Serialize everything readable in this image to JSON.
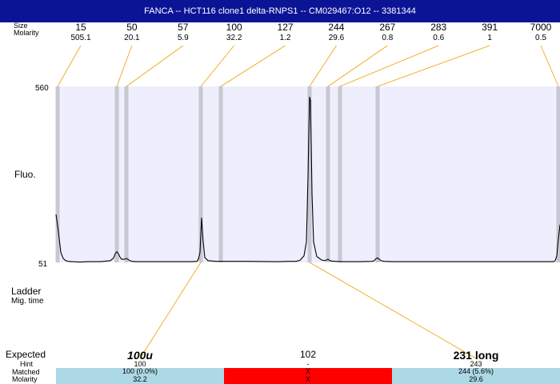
{
  "title": "FANCA -- HCT116 clone1 delta-RNPS1 -- CM029467:O12 -- 3381344",
  "row_labels": {
    "size": "Size",
    "molarity": "Molarity",
    "fluo": "Fluo.",
    "ladder": "Ladder",
    "mig_time": "Mig. time",
    "expected": "Expected",
    "hint": "Hint",
    "matched": "Matched",
    "molarity_bottom": "Molarity"
  },
  "colors": {
    "title_bg": "#0c1496",
    "plot_bg": "#eeeefc",
    "band": "#c8c8d4",
    "leader": "#f0a000",
    "matched_ok": "#add8e6",
    "matched_fail": "#ff0000"
  },
  "chart_data": {
    "type": "line",
    "title": "",
    "xlabel": "",
    "ylabel": "Fluo.",
    "ylim": [
      51,
      560
    ],
    "y_ticks": [
      "560",
      "51"
    ],
    "peaks": [
      {
        "size": "15",
        "molarity": "505.1"
      },
      {
        "size": "50",
        "molarity": "20.1"
      },
      {
        "size": "57",
        "molarity": "5.9"
      },
      {
        "size": "100",
        "molarity": "32.2"
      },
      {
        "size": "127",
        "molarity": "1.2"
      },
      {
        "size": "244",
        "molarity": "29.6"
      },
      {
        "size": "267",
        "molarity": "0.8"
      },
      {
        "size": "283",
        "molarity": "0.6"
      },
      {
        "size": "391",
        "molarity": "1"
      },
      {
        "size": "7000",
        "molarity": "0.5"
      }
    ],
    "trace": {
      "x": [
        0,
        3,
        6,
        9,
        12,
        15,
        20,
        30,
        40,
        55,
        68,
        72,
        74,
        76,
        78,
        80,
        82,
        85,
        88,
        90,
        92,
        95,
        100,
        110,
        130,
        155,
        170,
        176,
        178,
        180,
        181,
        182,
        184,
        186,
        190,
        200,
        240,
        270,
        280,
        290,
        300,
        305,
        310,
        313,
        314,
        315,
        316,
        317,
        318,
        319,
        320,
        322,
        326,
        332,
        336,
        338,
        340,
        342,
        344,
        350,
        355,
        380,
        395,
        398,
        400,
        402,
        404,
        406,
        410,
        420,
        500,
        560,
        600,
        622,
        624,
        626,
        628,
        630
      ],
      "y": [
        190,
        140,
        80,
        62,
        56,
        54,
        53,
        52,
        53,
        53,
        56,
        64,
        76,
        82,
        76,
        66,
        60,
        60,
        62,
        60,
        56,
        54,
        53,
        53,
        53,
        53,
        53,
        54,
        60,
        80,
        130,
        180,
        110,
        65,
        56,
        54,
        54,
        53,
        53,
        54,
        54,
        57,
        70,
        110,
        200,
        300,
        420,
        530,
        520,
        400,
        250,
        110,
        68,
        58,
        56,
        58,
        60,
        57,
        55,
        54,
        53,
        53,
        54,
        56,
        62,
        64,
        60,
        56,
        54,
        53,
        53,
        53,
        53,
        53,
        56,
        70,
        120,
        160
      ]
    },
    "expected": [
      {
        "name": "100u",
        "hint": "100",
        "matched": "100 (0.0%)",
        "molarity": "32.2",
        "status": "ok"
      },
      {
        "name": "102",
        "hint": "-",
        "matched": "X",
        "molarity": "X",
        "status": "fail"
      },
      {
        "name": "231 long",
        "hint": "243",
        "matched": "244 (5.6%)",
        "molarity": "29.6",
        "status": "ok"
      }
    ]
  }
}
